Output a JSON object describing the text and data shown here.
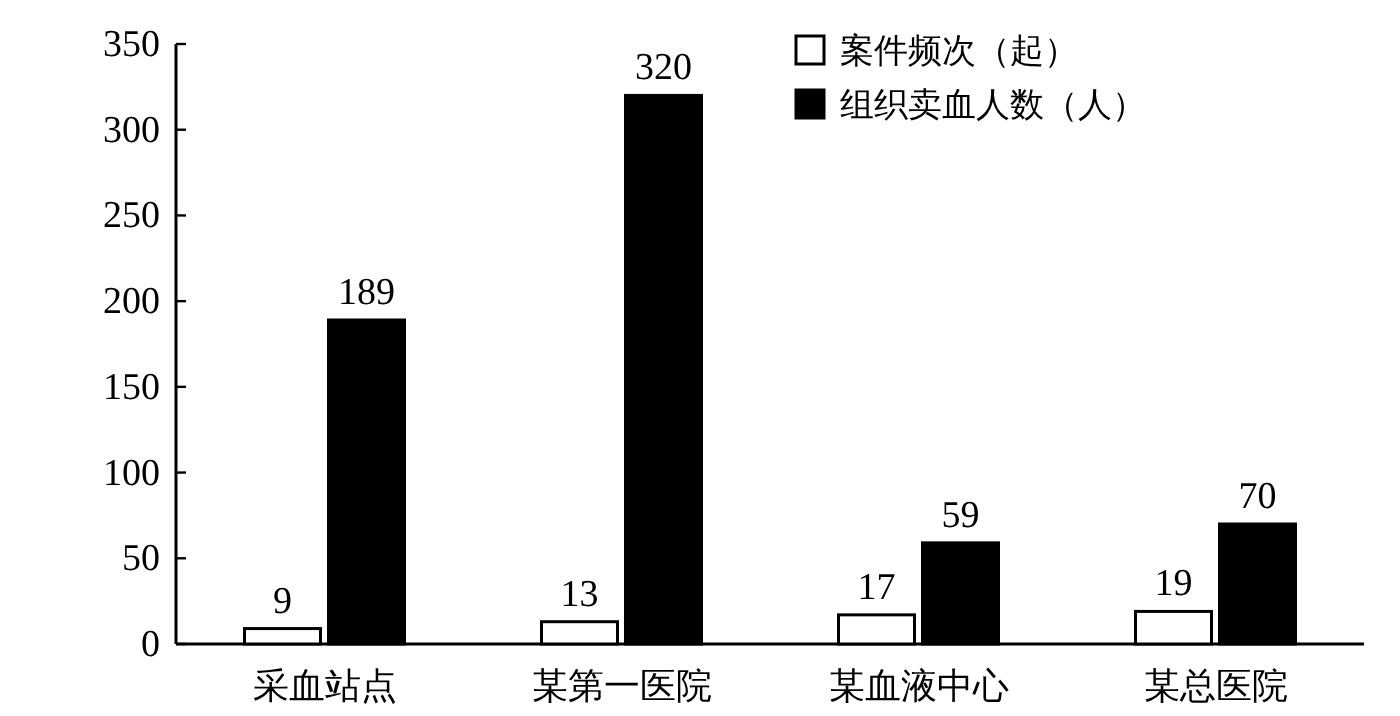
{
  "chart_data": {
    "type": "bar",
    "categories": [
      "采血站点",
      "某第一医院",
      "某血液中心",
      "某总医院"
    ],
    "series": [
      {
        "name": "案件频次（起）",
        "color": "#ffffff",
        "values": [
          9,
          13,
          17,
          19
        ]
      },
      {
        "name": "组织卖血人数（人）",
        "color": "#000000",
        "values": [
          189,
          320,
          59,
          70
        ]
      }
    ],
    "ylim": [
      0,
      350
    ],
    "yticks": [
      0,
      50,
      100,
      150,
      200,
      250,
      300,
      350
    ],
    "data_labels": true,
    "legend": "top right",
    "grid": false
  }
}
